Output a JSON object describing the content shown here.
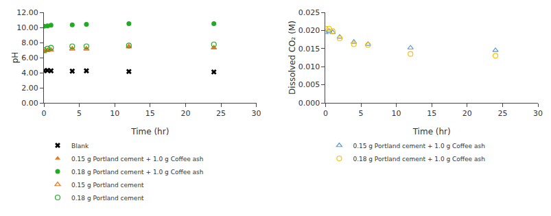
{
  "chart_data": [
    {
      "type": "scatter",
      "xlabel": "Time (hr)",
      "ylabel": "pH",
      "xlim": [
        0,
        30
      ],
      "ylim": [
        0.0,
        12.0
      ],
      "xticks": [
        0,
        5,
        10,
        15,
        20,
        25,
        30
      ],
      "yticks": [
        {
          "value": 0.0,
          "label": "0.00"
        },
        {
          "value": 2.0,
          "label": "2.00"
        },
        {
          "value": 4.0,
          "label": "4.00"
        },
        {
          "value": 6.0,
          "label": "6.00"
        },
        {
          "value": 8.0,
          "label": "8.00"
        },
        {
          "value": 10.0,
          "label": "10.00"
        },
        {
          "value": 12.0,
          "label": "12.00"
        }
      ],
      "grid": false,
      "legend": "bottom",
      "series": [
        {
          "name": "Blank",
          "color": "black",
          "marker": "x",
          "x": [
            0,
            0.5,
            1,
            4,
            6,
            12,
            24
          ],
          "values": [
            4.25,
            4.3,
            4.25,
            4.2,
            4.25,
            4.15,
            4.1
          ]
        },
        {
          "name": "0.15 g Portland cement + 1.0 g Coffee ash",
          "color": "#E87722",
          "marker": "triangle",
          "x": [
            0,
            0.5,
            1,
            4,
            6,
            12,
            24
          ],
          "values": [
            6.85,
            7.0,
            7.05,
            7.2,
            7.2,
            7.5,
            7.35
          ]
        },
        {
          "name": "0.18 g Portland cement + 1.0 g Coffee ash",
          "color": "#22AA22",
          "marker": "circle",
          "x": [
            0,
            0.5,
            1,
            4,
            6,
            12,
            24
          ],
          "values": [
            10.15,
            10.2,
            10.3,
            10.35,
            10.4,
            10.5,
            10.5
          ]
        },
        {
          "name": "0.15 g Portland cement",
          "color": "#E87722",
          "marker": "triangle-open",
          "x": [
            0,
            0.5,
            1,
            4,
            6,
            12,
            24
          ],
          "values": [
            6.8,
            6.95,
            7.0,
            7.15,
            7.15,
            7.45,
            7.3
          ]
        },
        {
          "name": "0.18 g Portland cement",
          "color": "#22AA22",
          "marker": "circle-open",
          "x": [
            0,
            0.5,
            1,
            4,
            6,
            12,
            24
          ],
          "values": [
            7.0,
            7.2,
            7.3,
            7.5,
            7.5,
            7.6,
            7.75
          ]
        }
      ]
    },
    {
      "type": "scatter",
      "xlabel": "Time (hr)",
      "ylabel": "Dissolved CO₂ (M)",
      "xlim": [
        0,
        30
      ],
      "ylim": [
        0.0,
        0.025
      ],
      "xticks": [
        0,
        5,
        10,
        15,
        20,
        25,
        30
      ],
      "yticks": [
        {
          "value": 0.0,
          "label": "0.000"
        },
        {
          "value": 0.005,
          "label": "0.005"
        },
        {
          "value": 0.01,
          "label": "0.010"
        },
        {
          "value": 0.015,
          "label": "0.015"
        },
        {
          "value": 0.02,
          "label": "0.020"
        },
        {
          "value": 0.025,
          "label": "0.025"
        }
      ],
      "grid": false,
      "legend": "bottom",
      "series": [
        {
          "name": "0.15 g Portland cement + 1.0 g Coffee ash",
          "color": "#5B9BD5",
          "marker": "triangle-open",
          "x": [
            0,
            0.5,
            1,
            2,
            4,
            6,
            12,
            24
          ],
          "values": [
            0.0195,
            0.0198,
            0.0195,
            0.0182,
            0.0168,
            0.0162,
            0.0152,
            0.0145
          ]
        },
        {
          "name": "0.18 g Portland cement + 1.0 g Coffee ash",
          "color": "#FFC000",
          "marker": "circle-open",
          "x": [
            0,
            0.5,
            1,
            2,
            4,
            6,
            12,
            24
          ],
          "values": [
            0.0205,
            0.0205,
            0.0198,
            0.0178,
            0.0162,
            0.016,
            0.0135,
            0.013
          ]
        }
      ]
    }
  ]
}
